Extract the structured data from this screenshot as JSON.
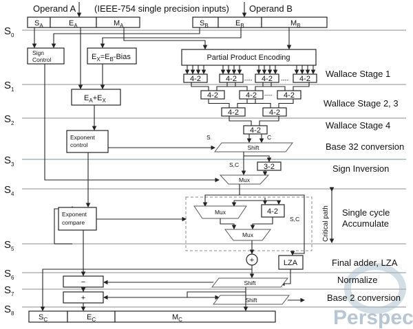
{
  "top": {
    "operand_a": "Operand A",
    "operand_b": "Operand B",
    "note": "(IEEE-754 single precision inputs)"
  },
  "fields_a": [
    {
      "m": "S",
      "s": "A"
    },
    {
      "m": "E",
      "s": "A"
    },
    {
      "m": "M",
      "s": "A"
    }
  ],
  "fields_b": [
    {
      "m": "S",
      "s": "B"
    },
    {
      "m": "E",
      "s": "B"
    },
    {
      "m": "M",
      "s": "B"
    }
  ],
  "fields_c": [
    {
      "m": "S",
      "s": "C"
    },
    {
      "m": "E",
      "s": "C"
    },
    {
      "m": "M",
      "s": "C"
    }
  ],
  "stages": [
    {
      "m": "S",
      "s": "0"
    },
    {
      "m": "S",
      "s": "1"
    },
    {
      "m": "S",
      "s": "2"
    },
    {
      "m": "S",
      "s": "3"
    },
    {
      "m": "S",
      "s": "4"
    },
    {
      "m": "S",
      "s": "5"
    },
    {
      "m": "S",
      "s": "6"
    },
    {
      "m": "S",
      "s": "7"
    },
    {
      "m": "S",
      "s": "8"
    }
  ],
  "blocks": {
    "sign_control": [
      "Sign",
      "Control"
    ],
    "ex_bias": {
      "e1": "E",
      "s1": "X",
      "eq": "=E",
      "s2": "B",
      "rest": "-Bias"
    },
    "ea_ex": {
      "e1": "E",
      "s1": "A",
      "plus": "+E",
      "s2": "X"
    },
    "ppe": "Partial Product Encoding",
    "compressor": "4-2",
    "compressor32": "3-2",
    "exp_control": [
      "Exponent",
      "control"
    ],
    "exp_compare": [
      "Exponent",
      "compare"
    ],
    "shift": "Shift",
    "mux": "Mux",
    "lza": "LZA",
    "minus": "−",
    "plus": "+",
    "adder": "+",
    "s": "S",
    "c": "C",
    "sc": "S,C",
    "dots": "----",
    "critical_path": "Critical path"
  },
  "right_labels": [
    "Wallace Stage 1",
    "Wallace Stage 2, 3",
    "Wallace Stage 4",
    "Base 32 conversion",
    "Sign Inversion",
    "Single cycle",
    "Accumulate",
    "Final adder, LZA",
    "Normalize",
    "Base 2 conversion"
  ],
  "watermark": "Perspective",
  "colors": {
    "stage_line": "#aab3bb",
    "watermark": "#9fb3c4"
  }
}
